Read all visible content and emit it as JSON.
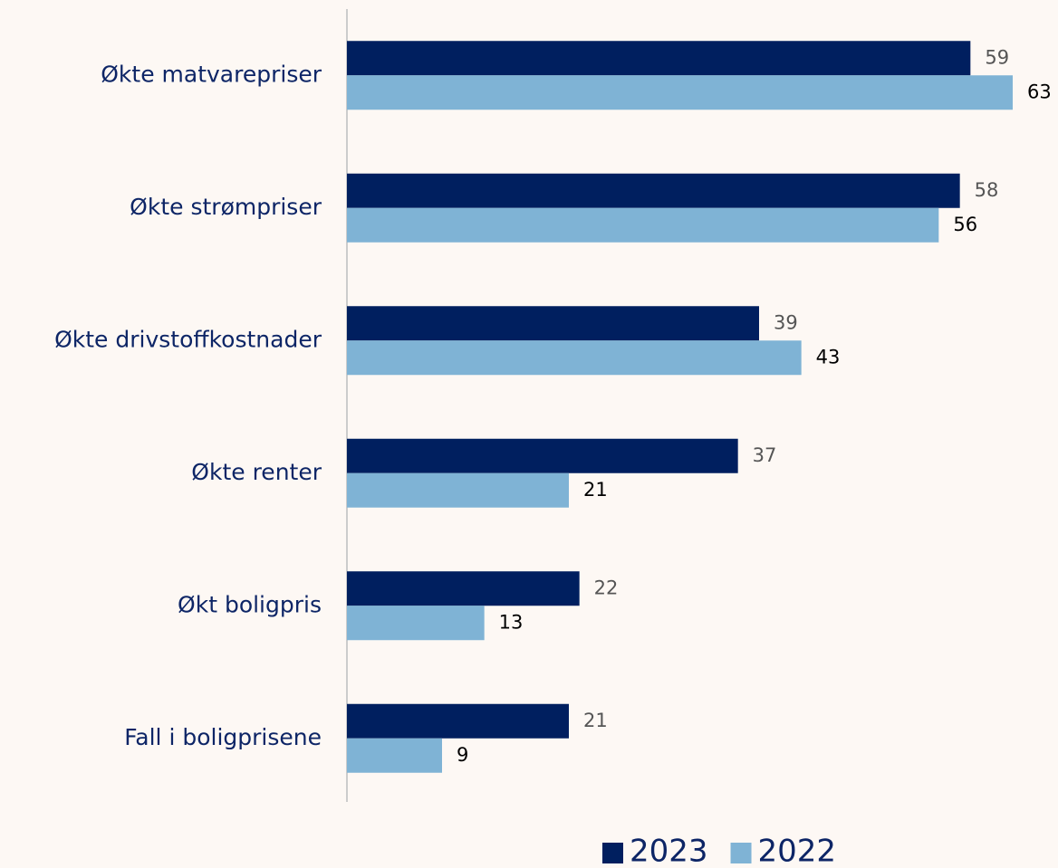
{
  "chart_data": {
    "type": "bar",
    "orientation": "horizontal",
    "categories": [
      "Økte matvarepriser",
      "Økte strømpriser",
      "Økte drivstoffkostnader",
      "Økte renter",
      "Økt boligpris",
      "Fall i boligprisene"
    ],
    "series": [
      {
        "name": "2023",
        "color": "#001f5f",
        "label_color": "#555555",
        "values": [
          59,
          58,
          39,
          37,
          22,
          21
        ]
      },
      {
        "name": "2022",
        "color": "#7fb3d5",
        "label_color": "#000000",
        "values": [
          63,
          56,
          43,
          21,
          13,
          9
        ]
      }
    ],
    "legend": "bottom"
  }
}
